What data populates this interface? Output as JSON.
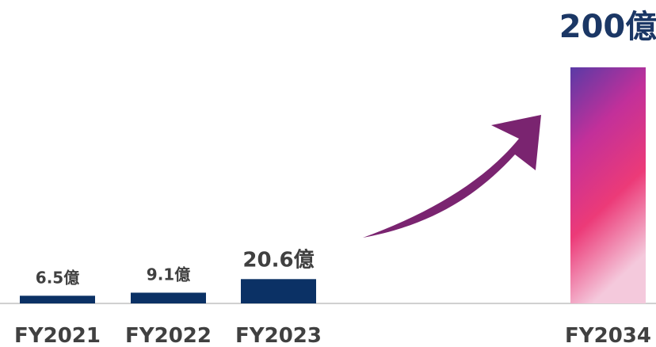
{
  "chart_data": {
    "type": "bar",
    "categories": [
      "FY2021",
      "FY2022",
      "FY2023",
      "FY2034"
    ],
    "values": [
      6.5,
      9.1,
      20.6,
      200
    ],
    "value_labels": [
      "6.5億",
      "9.1億",
      "20.6億",
      "200億"
    ],
    "colors": [
      "#0b3165",
      "#0b3165",
      "#0b3165",
      [
        "#5a3aa6",
        "#c2309a",
        "#ec3a78",
        "#f4c9dc"
      ]
    ],
    "ylim": [
      0,
      200
    ]
  }
}
